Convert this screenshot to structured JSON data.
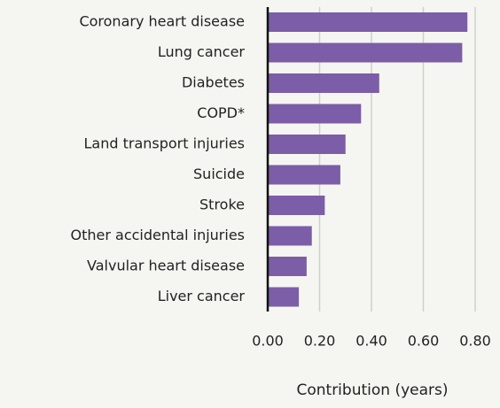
{
  "chart_data": {
    "type": "bar",
    "orientation": "horizontal",
    "categories": [
      "Coronary heart disease",
      "Lung cancer",
      "Diabetes",
      "COPD*",
      "Land transport injuries",
      "Suicide",
      "Stroke",
      "Other accidental injuries",
      "Valvular heart disease",
      "Liver cancer"
    ],
    "values": [
      0.77,
      0.75,
      0.43,
      0.36,
      0.3,
      0.28,
      0.22,
      0.17,
      0.15,
      0.12
    ],
    "color": "#7b5ea7",
    "xlabel": "Contribution (years)",
    "xlim": [
      0,
      0.8
    ],
    "xticks": [
      {
        "value": 0,
        "label": "0.00"
      },
      {
        "value": 0.2,
        "label": "0.20"
      },
      {
        "value": 0.4,
        "label": "0.40"
      },
      {
        "value": 0.6,
        "label": "0.60"
      },
      {
        "value": 0.8,
        "label": "0.80"
      }
    ],
    "grid": true
  }
}
